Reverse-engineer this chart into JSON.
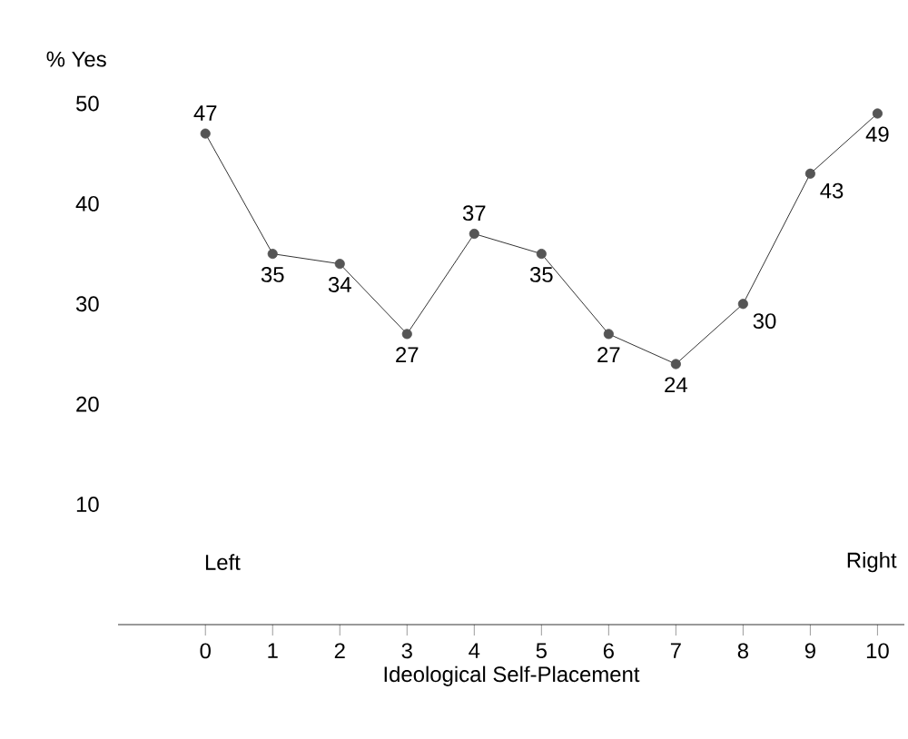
{
  "chart_data": {
    "type": "line",
    "xlabel": "Ideological Self-Placement",
    "ylabel": "% Yes",
    "x": [
      0,
      1,
      2,
      3,
      4,
      5,
      6,
      7,
      8,
      9,
      10
    ],
    "values": [
      47,
      35,
      34,
      27,
      37,
      35,
      27,
      24,
      30,
      43,
      49
    ],
    "color": "#555555",
    "marker": "circle",
    "data_labels": true,
    "xlim": [
      -1.3,
      10.4
    ],
    "xticks": [
      0,
      1,
      2,
      3,
      4,
      5,
      6,
      7,
      8,
      9,
      10
    ],
    "ylim": [
      -2,
      50
    ],
    "yticks": [
      10,
      20,
      30,
      40,
      50
    ],
    "annotations": [
      "Left",
      "Right"
    ]
  }
}
